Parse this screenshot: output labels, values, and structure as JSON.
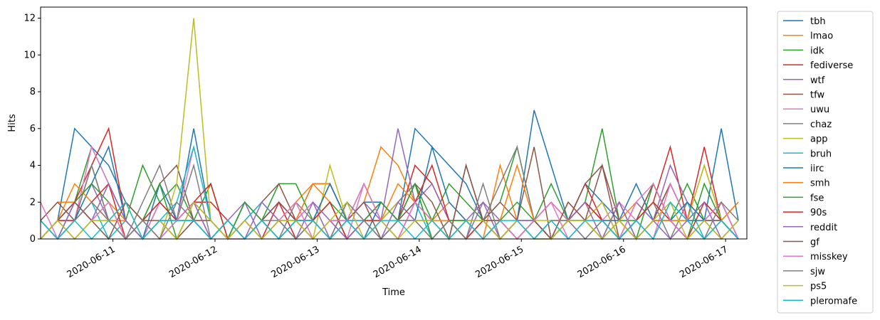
{
  "chart_data": {
    "type": "line",
    "xlabel": "Time",
    "ylabel": "Hits",
    "x_start": "2020-06-10 07:00",
    "x_step_hours": 4,
    "xlim_hours": [
      0,
      166
    ],
    "ylim": [
      0,
      12.6
    ],
    "yticks": [
      0,
      2,
      4,
      6,
      8,
      10,
      12
    ],
    "xticks": [
      {
        "label": "2020-06-11",
        "hour": 17
      },
      {
        "label": "2020-06-12",
        "hour": 41
      },
      {
        "label": "2020-06-13",
        "hour": 65
      },
      {
        "label": "2020-06-14",
        "hour": 89
      },
      {
        "label": "2020-06-15",
        "hour": 113
      },
      {
        "label": "2020-06-16",
        "hour": 137
      },
      {
        "label": "2020-06-17",
        "hour": 161
      }
    ],
    "legend_position": "outside-right",
    "grid": false,
    "series": [
      {
        "name": "tbh",
        "color": "#1f77b4",
        "values": [
          0,
          1,
          6,
          5,
          4,
          2,
          1,
          0,
          1,
          6,
          1,
          0,
          2,
          1,
          0,
          1,
          3,
          3,
          1,
          2,
          2,
          1,
          6,
          5,
          4,
          3,
          1,
          0,
          1,
          7,
          4,
          1,
          3,
          2,
          1,
          3,
          1,
          3,
          1,
          1,
          6,
          1
        ]
      },
      {
        "name": "lmao",
        "color": "#ff7f0e",
        "values": [
          1,
          2,
          2,
          1,
          2,
          1,
          0,
          1,
          0,
          1,
          1,
          0,
          1,
          0,
          1,
          2,
          3,
          3,
          1,
          2,
          5,
          4,
          2,
          1,
          2,
          1,
          0,
          4,
          1,
          1,
          2,
          1,
          2,
          1,
          1,
          2,
          1,
          3,
          1,
          4,
          1,
          2
        ]
      },
      {
        "name": "idk",
        "color": "#2ca02c",
        "values": [
          0,
          1,
          2,
          5,
          3,
          1,
          4,
          2,
          3,
          1,
          3,
          0,
          2,
          1,
          3,
          3,
          1,
          2,
          1,
          3,
          1,
          2,
          3,
          1,
          3,
          2,
          1,
          2,
          5,
          1,
          3,
          1,
          2,
          6,
          1,
          1,
          3,
          1,
          3,
          1,
          2,
          0
        ]
      },
      {
        "name": "fediverse",
        "color": "#d62728",
        "values": [
          0,
          1,
          2,
          4,
          6,
          1,
          0,
          2,
          1,
          2,
          2,
          1,
          0,
          1,
          2,
          0,
          1,
          0,
          1,
          1,
          2,
          1,
          4,
          3,
          1,
          1,
          0,
          1,
          0,
          1,
          2,
          1,
          3,
          1,
          0,
          1,
          2,
          5,
          1,
          5,
          1,
          0
        ]
      },
      {
        "name": "wtf",
        "color": "#9467bd",
        "values": [
          0,
          1,
          2,
          3,
          1,
          0,
          1,
          2,
          1,
          1,
          0,
          1,
          2,
          0,
          1,
          1,
          2,
          0,
          1,
          2,
          1,
          6,
          2,
          3,
          1,
          0,
          2,
          1,
          0,
          1,
          0,
          1,
          2,
          1,
          0,
          2,
          1,
          4,
          2,
          1,
          2,
          0
        ]
      },
      {
        "name": "tfw",
        "color": "#8c564b",
        "values": [
          1,
          2,
          1,
          4,
          1,
          2,
          1,
          3,
          4,
          1,
          1,
          0,
          1,
          2,
          3,
          1,
          1,
          0,
          2,
          1,
          2,
          1,
          3,
          2,
          0,
          4,
          1,
          2,
          1,
          5,
          0,
          1,
          3,
          4,
          1,
          0,
          1,
          3,
          1,
          2,
          1,
          0
        ]
      },
      {
        "name": "uwu",
        "color": "#e377c2",
        "values": [
          2,
          0,
          1,
          5,
          3,
          1,
          0,
          2,
          1,
          5,
          1,
          0,
          0,
          1,
          2,
          1,
          2,
          1,
          0,
          3,
          1,
          2,
          1,
          0,
          1,
          1,
          0,
          1,
          0,
          1,
          2,
          1,
          0,
          1,
          2,
          1,
          0,
          3,
          1,
          2,
          1,
          0
        ]
      },
      {
        "name": "chaz",
        "color": "#7f7f7f",
        "values": [
          1,
          0,
          1,
          4,
          1,
          0,
          2,
          4,
          1,
          4,
          0,
          1,
          0,
          1,
          0,
          2,
          1,
          3,
          1,
          0,
          1,
          2,
          3,
          0,
          1,
          0,
          1,
          3,
          5,
          1,
          0,
          1,
          1,
          2,
          0,
          1,
          2,
          0,
          2,
          1,
          0,
          1
        ]
      },
      {
        "name": "app",
        "color": "#bcbd22",
        "values": [
          0,
          1,
          0,
          1,
          1,
          2,
          1,
          0,
          3,
          12,
          1,
          0,
          1,
          0,
          1,
          1,
          0,
          4,
          1,
          0,
          1,
          2,
          1,
          0,
          1,
          1,
          0,
          1,
          0,
          1,
          1,
          0,
          1,
          2,
          0,
          1,
          2,
          1,
          1,
          4,
          1,
          0
        ]
      },
      {
        "name": "bruh",
        "color": "#17becf",
        "values": [
          0,
          1,
          1,
          2,
          0,
          1,
          0,
          1,
          2,
          5,
          1,
          0,
          1,
          2,
          1,
          0,
          1,
          0,
          1,
          1,
          0,
          1,
          2,
          0,
          1,
          0,
          1,
          1,
          0,
          1,
          0,
          1,
          1,
          0,
          1,
          0,
          1,
          1,
          2,
          0,
          1,
          0
        ]
      },
      {
        "name": "iirc",
        "color": "#1f77b4",
        "values": [
          1,
          0,
          1,
          3,
          5,
          1,
          0,
          3,
          1,
          1,
          0,
          1,
          0,
          1,
          2,
          1,
          1,
          3,
          1,
          0,
          2,
          1,
          1,
          5,
          2,
          1,
          1,
          0,
          1,
          1,
          0,
          1,
          2,
          1,
          1,
          0,
          1,
          1,
          2,
          1,
          1,
          0
        ]
      },
      {
        "name": "smh",
        "color": "#ff7f0e",
        "values": [
          0,
          1,
          3,
          2,
          1,
          1,
          0,
          1,
          1,
          2,
          0,
          1,
          0,
          1,
          0,
          1,
          3,
          2,
          0,
          1,
          1,
          3,
          2,
          1,
          1,
          0,
          1,
          1,
          4,
          1,
          0,
          2,
          1,
          0,
          1,
          0,
          1,
          1,
          1,
          0,
          1,
          2
        ]
      },
      {
        "name": "fse",
        "color": "#2ca02c",
        "values": [
          1,
          0,
          2,
          3,
          2,
          0,
          1,
          3,
          0,
          2,
          1,
          0,
          2,
          1,
          0,
          1,
          1,
          2,
          0,
          1,
          2,
          1,
          3,
          0,
          1,
          1,
          0,
          1,
          2,
          1,
          0,
          1,
          1,
          0,
          2,
          0,
          3,
          1,
          0,
          3,
          1,
          0
        ]
      },
      {
        "name": "90s",
        "color": "#d62728",
        "values": [
          0,
          1,
          1,
          2,
          3,
          0,
          1,
          2,
          1,
          2,
          3,
          0,
          1,
          0,
          2,
          1,
          1,
          2,
          0,
          1,
          1,
          0,
          2,
          4,
          1,
          0,
          1,
          0,
          1,
          0,
          1,
          1,
          2,
          1,
          0,
          1,
          2,
          1,
          0,
          2,
          1,
          0
        ]
      },
      {
        "name": "reddit",
        "color": "#9467bd",
        "values": [
          1,
          0,
          2,
          1,
          3,
          1,
          0,
          1,
          1,
          2,
          0,
          1,
          0,
          2,
          1,
          0,
          2,
          1,
          0,
          1,
          0,
          2,
          1,
          1,
          0,
          1,
          2,
          0,
          1,
          1,
          0,
          1,
          2,
          0,
          2,
          0,
          1,
          0,
          1,
          2,
          0,
          1
        ]
      },
      {
        "name": "gf",
        "color": "#8c564b",
        "values": [
          0,
          1,
          2,
          1,
          0,
          2,
          1,
          1,
          0,
          1,
          0,
          1,
          0,
          1,
          2,
          1,
          0,
          1,
          1,
          2,
          0,
          1,
          2,
          1,
          0,
          4,
          1,
          1,
          0,
          1,
          0,
          2,
          1,
          4,
          0,
          1,
          3,
          1,
          0,
          1,
          1,
          0
        ]
      },
      {
        "name": "misskey",
        "color": "#e377c2",
        "values": [
          0,
          1,
          0,
          1,
          2,
          0,
          1,
          0,
          1,
          2,
          1,
          0,
          1,
          0,
          1,
          2,
          0,
          1,
          1,
          3,
          1,
          0,
          2,
          1,
          0,
          1,
          0,
          1,
          0,
          1,
          2,
          0,
          1,
          1,
          0,
          2,
          3,
          1,
          0,
          1,
          2,
          0
        ]
      },
      {
        "name": "sjw",
        "color": "#7f7f7f",
        "values": [
          1,
          0,
          1,
          2,
          1,
          0,
          1,
          0,
          2,
          1,
          0,
          1,
          0,
          1,
          1,
          0,
          1,
          0,
          2,
          1,
          0,
          1,
          1,
          0,
          1,
          0,
          3,
          0,
          1,
          0,
          1,
          1,
          0,
          1,
          0,
          1,
          0,
          2,
          1,
          0,
          2,
          1
        ]
      },
      {
        "name": "ps5",
        "color": "#bcbd22",
        "values": [
          0,
          1,
          0,
          1,
          1,
          2,
          0,
          1,
          0,
          2,
          1,
          0,
          1,
          0,
          1,
          1,
          0,
          1,
          2,
          0,
          1,
          0,
          1,
          1,
          0,
          1,
          1,
          0,
          1,
          0,
          0,
          1,
          1,
          0,
          1,
          0,
          1,
          2,
          0,
          1,
          0,
          1
        ]
      },
      {
        "name": "pleromafe",
        "color": "#17becf",
        "values": [
          1,
          0,
          1,
          0,
          1,
          2,
          0,
          1,
          1,
          1,
          0,
          1,
          0,
          1,
          0,
          1,
          1,
          0,
          1,
          0,
          1,
          1,
          0,
          1,
          0,
          1,
          0,
          1,
          1,
          0,
          1,
          0,
          1,
          1,
          0,
          1,
          0,
          2,
          1,
          0,
          1,
          0
        ]
      }
    ]
  }
}
